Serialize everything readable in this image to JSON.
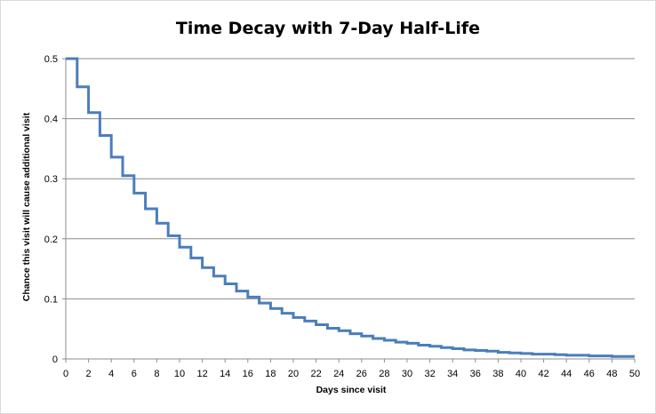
{
  "chart_data": {
    "type": "line",
    "title": "Time Decay with 7-Day Half-Life",
    "xlabel": "Days since visit",
    "ylabel": "Chance this visit will cause additional visit",
    "xlim": [
      0,
      50
    ],
    "ylim": [
      0,
      0.5
    ],
    "x_ticks": [
      0,
      2,
      4,
      6,
      8,
      10,
      12,
      14,
      16,
      18,
      20,
      22,
      24,
      26,
      28,
      30,
      32,
      34,
      36,
      38,
      40,
      42,
      44,
      46,
      48,
      50
    ],
    "y_ticks": [
      0,
      0.1,
      0.2,
      0.3,
      0.4,
      0.5
    ],
    "y_tick_labels": [
      "0",
      "0.1",
      "0.2",
      "0.3",
      "0.4",
      "0.5"
    ],
    "grid": "horizontal",
    "legend": "none",
    "step": "post",
    "series": [
      {
        "color": "#4a7ebb",
        "x": [
          0,
          1,
          2,
          3,
          4,
          5,
          6,
          7,
          8,
          9,
          10,
          11,
          12,
          13,
          14,
          15,
          16,
          17,
          18,
          19,
          20,
          21,
          22,
          23,
          24,
          25,
          26,
          27,
          28,
          29,
          30,
          31,
          32,
          33,
          34,
          35,
          36,
          37,
          38,
          39,
          40,
          41,
          42,
          43,
          44,
          45,
          46,
          47,
          48,
          49,
          50
        ],
        "values": [
          0.5,
          0.453,
          0.41,
          0.372,
          0.336,
          0.305,
          0.276,
          0.25,
          0.226,
          0.205,
          0.186,
          0.168,
          0.152,
          0.138,
          0.125,
          0.113,
          0.103,
          0.093,
          0.084,
          0.076,
          0.069,
          0.063,
          0.057,
          0.051,
          0.047,
          0.042,
          0.038,
          0.034,
          0.031,
          0.028,
          0.026,
          0.023,
          0.021,
          0.019,
          0.017,
          0.015,
          0.014,
          0.013,
          0.011,
          0.01,
          0.009,
          0.008,
          0.008,
          0.007,
          0.006,
          0.006,
          0.005,
          0.005,
          0.004,
          0.004,
          0.004
        ]
      }
    ]
  }
}
